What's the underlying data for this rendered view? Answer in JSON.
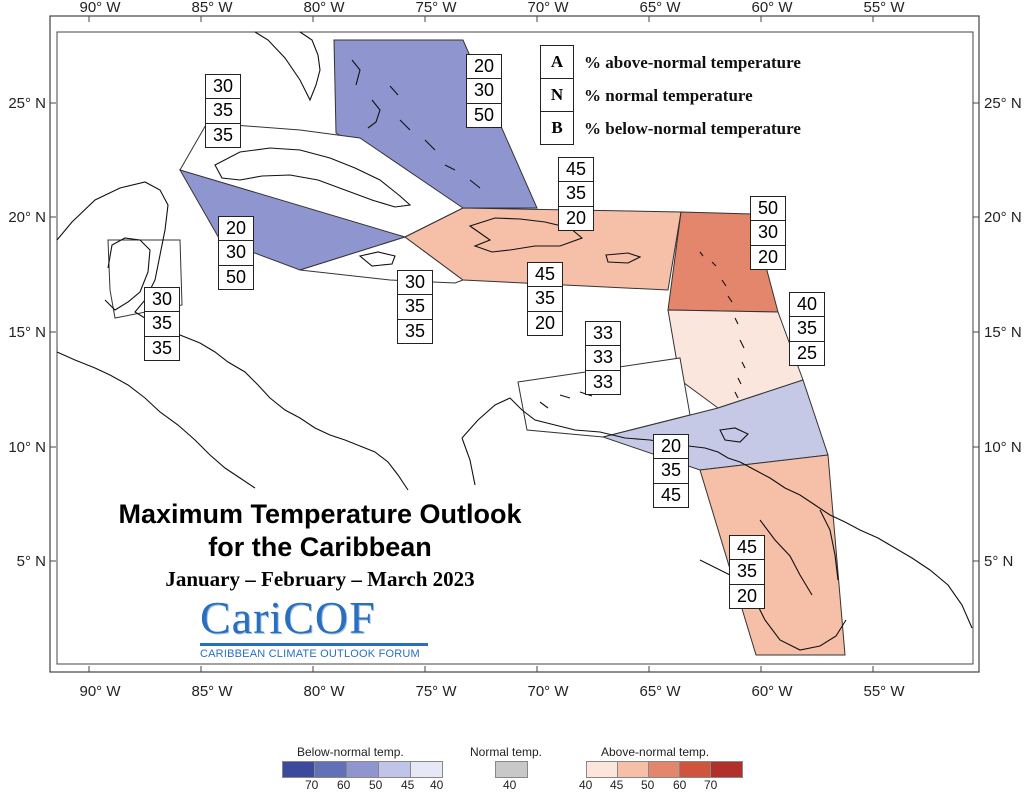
{
  "map": {
    "longitude_labels": [
      "90° W",
      "85° W",
      "80° W",
      "75° W",
      "70° W",
      "65° W",
      "60° W",
      "55° W"
    ],
    "latitude_labels": [
      "25° N",
      "20° N",
      "15° N",
      "10° N",
      "5° N"
    ]
  },
  "legend_key": [
    {
      "letter": "A",
      "text": "% above-normal temperature"
    },
    {
      "letter": "N",
      "text": "% normal temperature"
    },
    {
      "letter": "B",
      "text": "% below-normal temperature"
    }
  ],
  "forecast_boxes": [
    {
      "name": "bahamas",
      "A": "20",
      "N": "30",
      "B": "50",
      "fill": "#8f96cf"
    },
    {
      "name": "cuba-north",
      "A": "30",
      "N": "35",
      "B": "35",
      "fill": "#ffffff"
    },
    {
      "name": "cuba-south",
      "A": "20",
      "N": "30",
      "B": "50",
      "fill": "#8f96cf"
    },
    {
      "name": "belize-guatemala",
      "A": "30",
      "N": "35",
      "B": "35",
      "fill": "#ffffff"
    },
    {
      "name": "jamaica",
      "A": "30",
      "N": "35",
      "B": "35",
      "fill": "#ffffff"
    },
    {
      "name": "hispaniola-north",
      "A": "45",
      "N": "35",
      "B": "20",
      "fill": "#f5bfa8"
    },
    {
      "name": "hispaniola-south",
      "A": "45",
      "N": "35",
      "B": "20",
      "fill": "#f5bfa8"
    },
    {
      "name": "leeward-islands",
      "A": "50",
      "N": "30",
      "B": "20",
      "fill": "#e4866c"
    },
    {
      "name": "windward-islands",
      "A": "40",
      "N": "35",
      "B": "25",
      "fill": "#fbe6de"
    },
    {
      "name": "abc-islands",
      "A": "33",
      "N": "33",
      "B": "33",
      "fill": "#ffffff"
    },
    {
      "name": "trinidad-venezuela",
      "A": "20",
      "N": "35",
      "B": "45",
      "fill": "#c6c9e6"
    },
    {
      "name": "guianas",
      "A": "45",
      "N": "35",
      "B": "20",
      "fill": "#f5bfa8"
    }
  ],
  "title": {
    "line1": "Maximum Temperature Outlook",
    "line2": "for the Caribbean",
    "period": "January – February – March 2023"
  },
  "logo": {
    "wordmark": "CariCOF",
    "tagline": "CARIBBEAN CLIMATE OUTLOOK FORUM"
  },
  "color_scale": {
    "below_label": "Below-normal temp.",
    "normal_label": "Normal temp.",
    "above_label": "Above-normal temp.",
    "below_values": [
      "70",
      "60",
      "50",
      "45",
      "40"
    ],
    "normal_values": [
      "40"
    ],
    "above_values": [
      "40",
      "45",
      "50",
      "60",
      "70"
    ],
    "below_colors": [
      "#3b4a9c",
      "#6270b8",
      "#8f96cf",
      "#c0c4e6",
      "#e6e8f6"
    ],
    "normal_color": "#c8c8c8",
    "above_colors": [
      "#fce6dc",
      "#f5bfa8",
      "#e4866c",
      "#d0533c",
      "#b1302a"
    ]
  }
}
